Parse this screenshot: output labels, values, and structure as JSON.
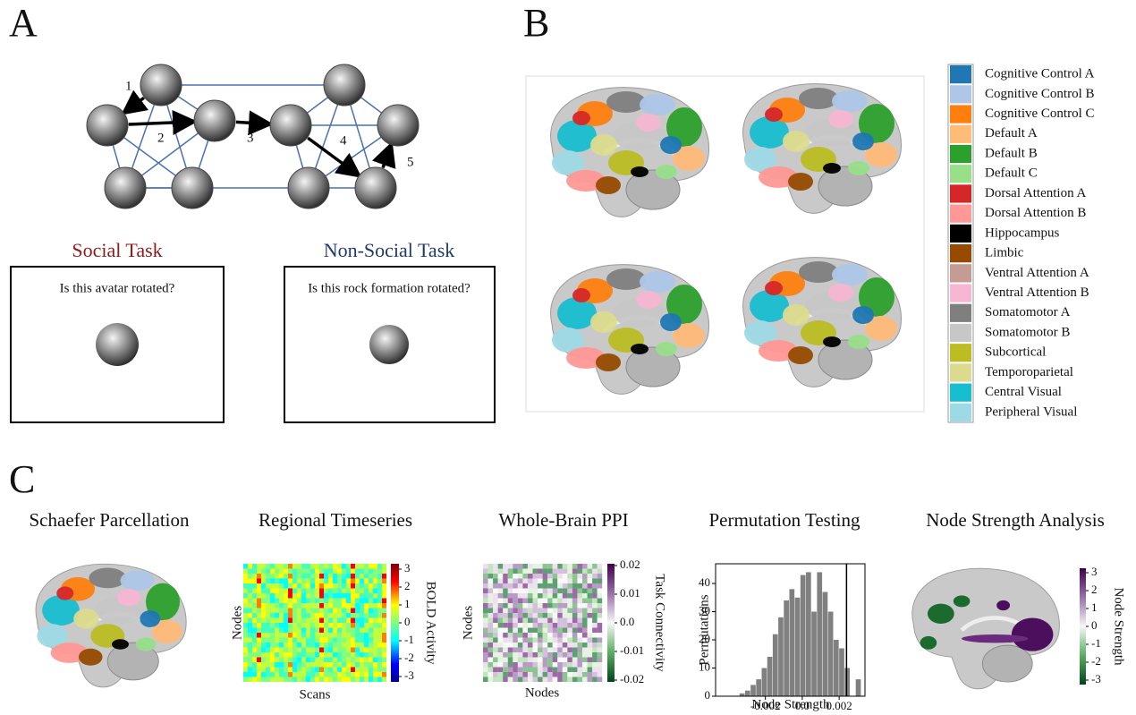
{
  "panel_a": {
    "label": "A",
    "steps": [
      "1",
      "2",
      "3",
      "4",
      "5"
    ],
    "social_title": "Social Task",
    "social_question": "Is this avatar rotated?",
    "nonsocial_title": "Non-Social Task",
    "nonsocial_question": "Is this rock formation rotated?"
  },
  "panel_b": {
    "label": "B",
    "legend": [
      {
        "name": "Cognitive Control A",
        "color": "#1f77b4"
      },
      {
        "name": "Cognitive Control B",
        "color": "#aec7e8"
      },
      {
        "name": "Cognitive Control C",
        "color": "#ff7f0e"
      },
      {
        "name": "Default A",
        "color": "#ffbb78"
      },
      {
        "name": "Default B",
        "color": "#2ca02c"
      },
      {
        "name": "Default C",
        "color": "#98df8a"
      },
      {
        "name": "Dorsal Attention A",
        "color": "#d62728"
      },
      {
        "name": "Dorsal Attention B",
        "color": "#ff9896"
      },
      {
        "name": "Hippocampus",
        "color": "#000000"
      },
      {
        "name": "Limbic",
        "color": "#964b00"
      },
      {
        "name": "Ventral Attention A",
        "color": "#c49c94"
      },
      {
        "name": "Ventral Attention B",
        "color": "#f7b6d2"
      },
      {
        "name": "Somatomotor A",
        "color": "#7f7f7f"
      },
      {
        "name": "Somatomotor B",
        "color": "#c7c7c7"
      },
      {
        "name": "Subcortical",
        "color": "#bcbd22"
      },
      {
        "name": "Temporoparietal",
        "color": "#dbdb8d"
      },
      {
        "name": "Central Visual",
        "color": "#17becf"
      },
      {
        "name": "Peripheral Visual",
        "color": "#9edae5"
      }
    ]
  },
  "panel_c": {
    "label": "C",
    "titles": [
      "Schaefer Parcellation",
      "Regional Timeseries",
      "Whole-Brain PPI",
      "Permutation Testing",
      "Node Strength Analysis"
    ],
    "timeseries": {
      "ylabel": "Nodes",
      "xlabel": "Scans",
      "colorbar_label": "BOLD Activity",
      "colorbar_ticks": [
        3,
        2,
        1,
        0,
        -1,
        -2,
        -3
      ]
    },
    "ppi": {
      "ylabel": "Nodes",
      "xlabel": "Nodes",
      "colorbar_label": "Task Connectivity",
      "colorbar_ticks": [
        0.02,
        0.01,
        {
          "value": 0,
          "label": "0.0"
        },
        -0.01,
        -0.02
      ]
    },
    "histogram": {
      "type": "histogram",
      "xlabel": "Node Strength",
      "ylabel": "Permutations",
      "color": "#808080",
      "bins": [
        -0.0034,
        -0.0031,
        -0.0028,
        -0.0025,
        -0.0022,
        -0.0019,
        -0.0016,
        -0.0013,
        -0.001,
        -0.0007,
        -0.0004,
        -0.0001,
        0.0002,
        0.0005,
        0.0008,
        0.0011,
        0.0014,
        0.0017,
        0.002,
        0.0023,
        0.0026,
        0.0029,
        0.0032
      ],
      "counts": [
        1,
        2,
        4,
        6,
        10,
        14,
        22,
        28,
        34,
        38,
        35,
        43,
        44,
        30,
        44,
        37,
        30,
        20,
        17,
        10,
        0,
        6
      ],
      "observed_value": 0.0024,
      "xlim": [
        -0.0047,
        0.0034
      ],
      "ylim": [
        0,
        47
      ],
      "xticks": [
        -0.002,
        {
          "value": 0,
          "label": "0.0"
        },
        0.002
      ],
      "yticks": [
        0,
        10,
        20,
        30,
        40
      ]
    },
    "node_strength": {
      "colorbar_label": "Node Strength",
      "colorbar_ticks": [
        3,
        2,
        1,
        0,
        -1,
        -2,
        -3
      ]
    }
  }
}
